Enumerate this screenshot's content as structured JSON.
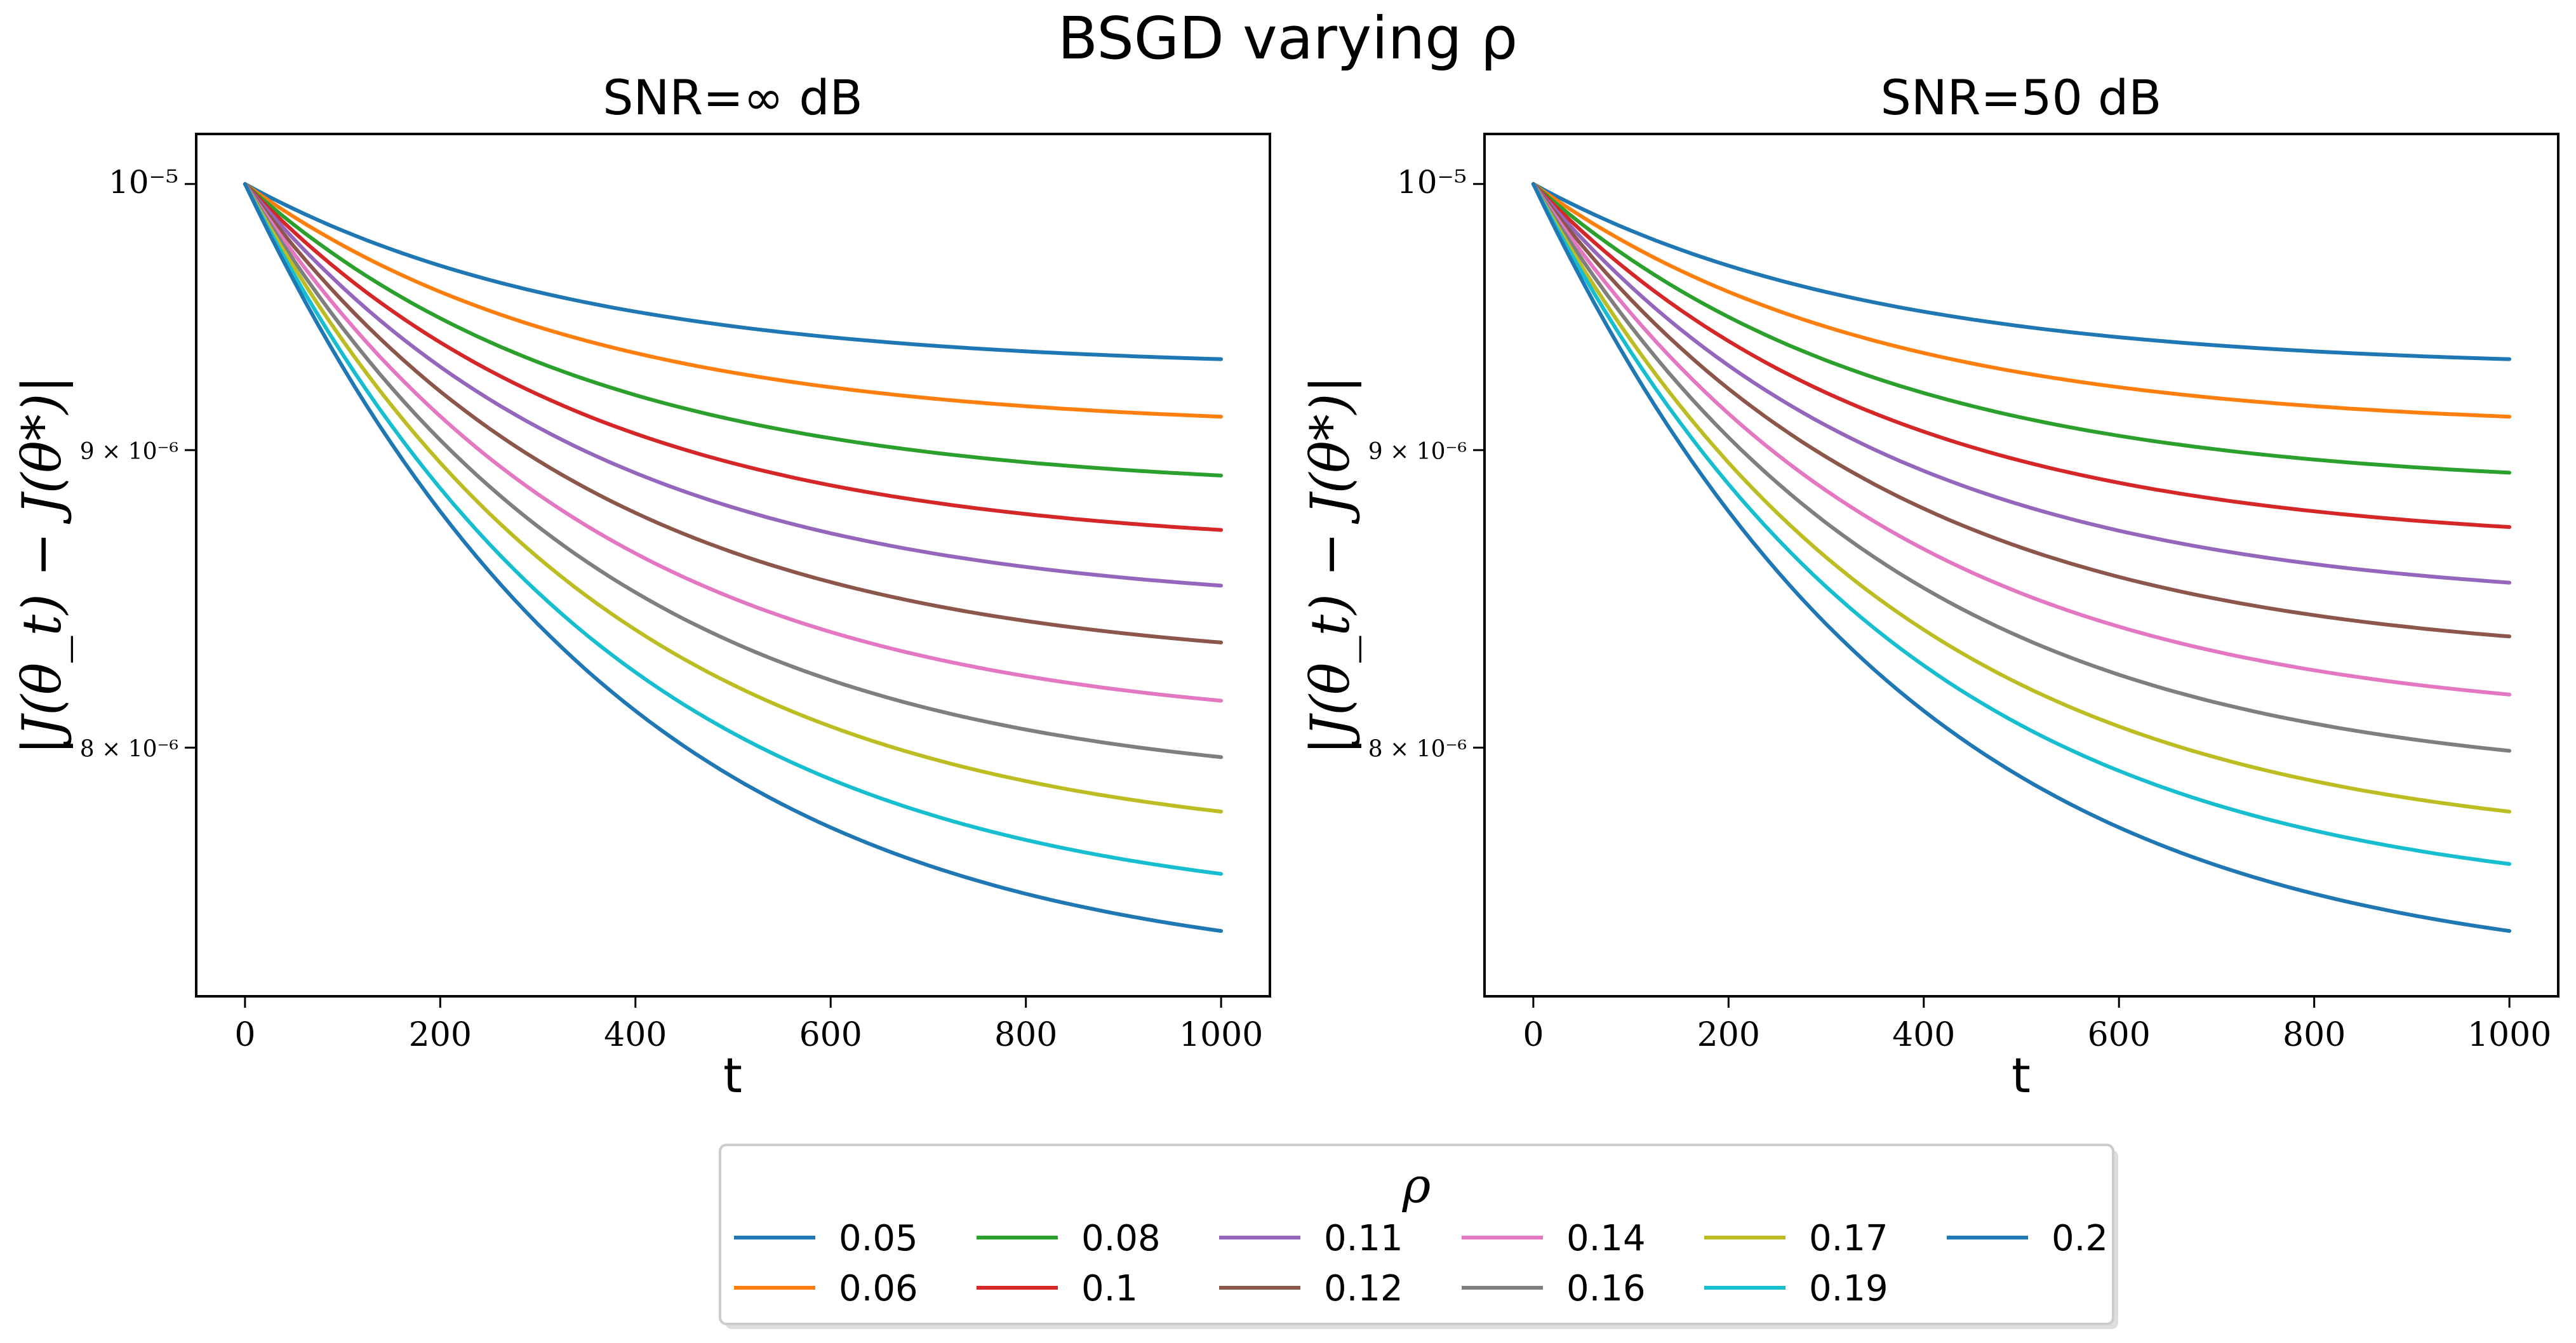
{
  "figure": {
    "title": "BSGD varying ρ"
  },
  "chart_data": [
    {
      "type": "line",
      "title": "SNR=∞ dB",
      "xlabel": "t",
      "ylabel": "|J(θ_t) − J(θ*)|",
      "xlim": [
        -50,
        1050
      ],
      "ylim": [
        7.25e-06,
        1.02e-05
      ],
      "yscale": "log",
      "xticks": [
        0,
        200,
        400,
        600,
        800,
        1000
      ],
      "xtick_labels": [
        "0",
        "200",
        "400",
        "600",
        "800",
        "1000"
      ],
      "yticks": [
        1e-05,
        9e-06,
        8e-06
      ],
      "ytick_labels": [
        "10⁻⁵",
        "9 × 10⁻⁶",
        "8 × 10⁻⁶"
      ],
      "grid": false,
      "series": [
        {
          "name": "0.05",
          "color": "#1f77b4",
          "start": 1e-05,
          "end": 9.33e-06
        },
        {
          "name": "0.06",
          "color": "#ff7f0e",
          "start": 1e-05,
          "end": 9.12e-06
        },
        {
          "name": "0.08",
          "color": "#2ca02c",
          "start": 1e-05,
          "end": 8.91e-06
        },
        {
          "name": "0.1",
          "color": "#d62728",
          "start": 1e-05,
          "end": 8.72e-06
        },
        {
          "name": "0.11",
          "color": "#9467bd",
          "start": 1e-05,
          "end": 8.53e-06
        },
        {
          "name": "0.12",
          "color": "#8c564b",
          "start": 1e-05,
          "end": 8.34e-06
        },
        {
          "name": "0.14",
          "color": "#e377c2",
          "start": 1e-05,
          "end": 8.15e-06
        },
        {
          "name": "0.16",
          "color": "#7f7f7f",
          "start": 1e-05,
          "end": 7.97e-06
        },
        {
          "name": "0.17",
          "color": "#bcbd22",
          "start": 1e-05,
          "end": 7.8e-06
        },
        {
          "name": "0.19",
          "color": "#17becf",
          "start": 1e-05,
          "end": 7.61e-06
        },
        {
          "name": "0.2",
          "color": "#1f77b4",
          "start": 1e-05,
          "end": 7.44e-06
        }
      ]
    },
    {
      "type": "line",
      "title": "SNR=50 dB",
      "xlabel": "t",
      "ylabel": "|J(θ_t) − J(θ*)|",
      "xlim": [
        -50,
        1050
      ],
      "ylim": [
        7.25e-06,
        1.02e-05
      ],
      "yscale": "log",
      "xticks": [
        0,
        200,
        400,
        600,
        800,
        1000
      ],
      "xtick_labels": [
        "0",
        "200",
        "400",
        "600",
        "800",
        "1000"
      ],
      "yticks": [
        1e-05,
        9e-06,
        8e-06
      ],
      "ytick_labels": [
        "10⁻⁵",
        "9 × 10⁻⁶",
        "8 × 10⁻⁶"
      ],
      "grid": false,
      "series": [
        {
          "name": "0.05",
          "color": "#1f77b4",
          "start": 1e-05,
          "end": 9.33e-06
        },
        {
          "name": "0.06",
          "color": "#ff7f0e",
          "start": 1e-05,
          "end": 9.12e-06
        },
        {
          "name": "0.08",
          "color": "#2ca02c",
          "start": 1e-05,
          "end": 8.92e-06
        },
        {
          "name": "0.1",
          "color": "#d62728",
          "start": 1e-05,
          "end": 8.73e-06
        },
        {
          "name": "0.11",
          "color": "#9467bd",
          "start": 1e-05,
          "end": 8.54e-06
        },
        {
          "name": "0.12",
          "color": "#8c564b",
          "start": 1e-05,
          "end": 8.36e-06
        },
        {
          "name": "0.14",
          "color": "#e377c2",
          "start": 1e-05,
          "end": 8.17e-06
        },
        {
          "name": "0.16",
          "color": "#7f7f7f",
          "start": 1e-05,
          "end": 7.99e-06
        },
        {
          "name": "0.17",
          "color": "#bcbd22",
          "start": 1e-05,
          "end": 7.8e-06
        },
        {
          "name": "0.19",
          "color": "#17becf",
          "start": 1e-05,
          "end": 7.64e-06
        },
        {
          "name": "0.2",
          "color": "#1f77b4",
          "start": 1e-05,
          "end": 7.44e-06
        }
      ]
    }
  ],
  "legend": {
    "title": "ρ",
    "placement": "bottom-center",
    "columns": 6,
    "entries": [
      {
        "label": "0.05",
        "color": "#1f77b4"
      },
      {
        "label": "0.06",
        "color": "#ff7f0e"
      },
      {
        "label": "0.08",
        "color": "#2ca02c"
      },
      {
        "label": "0.1",
        "color": "#d62728"
      },
      {
        "label": "0.11",
        "color": "#9467bd"
      },
      {
        "label": "0.12",
        "color": "#8c564b"
      },
      {
        "label": "0.14",
        "color": "#e377c2"
      },
      {
        "label": "0.16",
        "color": "#7f7f7f"
      },
      {
        "label": "0.17",
        "color": "#bcbd22"
      },
      {
        "label": "0.19",
        "color": "#17becf"
      },
      {
        "label": "0.2",
        "color": "#1f77b4"
      }
    ]
  }
}
